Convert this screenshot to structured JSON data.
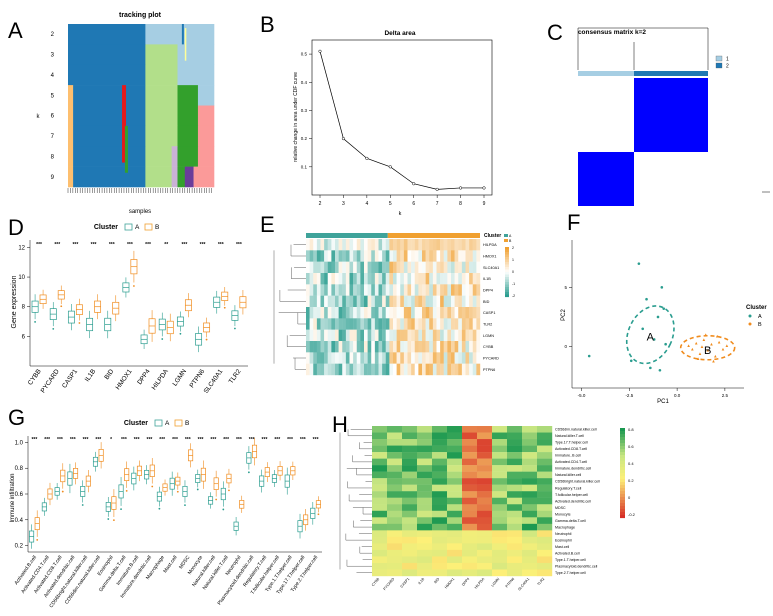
{
  "letters": {
    "a": "A",
    "b": "B",
    "c": "C",
    "d": "D",
    "e": "E",
    "f": "F",
    "g": "G",
    "h": "H"
  },
  "tracking": {
    "title": "tracking plot",
    "ylabel": "k",
    "xlabel": "samples",
    "k_labels": [
      "2",
      "3",
      "4",
      "5",
      "6",
      "7",
      "8",
      "9"
    ]
  },
  "delta": {
    "title": "Delta area",
    "ylabel": "relative change in area under CDF curve",
    "xlabel": "k",
    "x": [
      2,
      3,
      4,
      5,
      6,
      7,
      8,
      9
    ],
    "y": [
      0.51,
      0.2,
      0.13,
      0.1,
      0.04,
      0.02,
      0.025,
      0.025
    ],
    "xticks": [
      "2",
      "3",
      "4",
      "5",
      "6",
      "7",
      "8",
      "9"
    ],
    "yticks": [
      "0.1",
      "0.2",
      "0.3",
      "0.4",
      "0.5"
    ]
  },
  "consensus": {
    "title": "consensus matrix k=2",
    "legend": [
      "1",
      "2"
    ],
    "colors": {
      "c1": "#a6cee3",
      "c2": "#1f78b4",
      "fill": "#0000ff"
    }
  },
  "chart_data": [
    {
      "type": "box",
      "panel": "D",
      "legend_title": "Cluster",
      "legend": [
        "A",
        "B"
      ],
      "ylabel": "Gene expression",
      "categories": [
        "CYBB",
        "PYCARD",
        "CASP1",
        "IL1B",
        "BID",
        "HMOX1",
        "DPP4",
        "HILPDA",
        "LGMN",
        "PTPN6",
        "SLC40A1",
        "TLR2"
      ],
      "signif": [
        "***",
        "***",
        "***",
        "***",
        "***",
        "***",
        "***",
        "**",
        "***",
        "***",
        "***",
        "***"
      ],
      "yticks": [
        "6",
        "8",
        "10",
        "12"
      ],
      "ylim": [
        4,
        12.5
      ],
      "series": [
        {
          "name": "A",
          "median": [
            8.0,
            7.5,
            7.3,
            6.8,
            6.8,
            9.3,
            5.8,
            6.8,
            7.0,
            5.8,
            8.3,
            7.4
          ]
        },
        {
          "name": "B",
          "median": [
            8.5,
            8.8,
            7.8,
            8.0,
            7.9,
            10.7,
            6.7,
            6.6,
            8.1,
            6.6,
            8.7,
            8.3
          ]
        }
      ]
    },
    {
      "type": "heatmap",
      "panel": "E",
      "legend_title": "Cluster",
      "legend": [
        "A",
        "B"
      ],
      "scale_ticks": [
        "2",
        "1",
        "0",
        "-1",
        "-2"
      ],
      "rows": [
        "HILPDA",
        "HMOX1",
        "SLC40A1",
        "IL1B",
        "DPP4",
        "BID",
        "CASP1",
        "TLR2",
        "LGMN",
        "CYBB",
        "PYCARD",
        "PTPN6"
      ]
    },
    {
      "type": "scatter",
      "panel": "F",
      "xlabel": "PC1",
      "ylabel": "PC2",
      "legend_title": "Cluster",
      "legend": [
        "A",
        "B"
      ],
      "xticks": [
        "-5.0",
        "-2.5",
        "0.0",
        "2.5"
      ],
      "yticks": [
        "0",
        "5"
      ],
      "group_labels": [
        "A",
        "B"
      ],
      "clusterA": [
        [
          -2.0,
          7
        ],
        [
          -1.6,
          4
        ],
        [
          -0.8,
          5
        ],
        [
          -1.8,
          1.5
        ],
        [
          -1.2,
          0.6
        ],
        [
          -0.6,
          0.2
        ],
        [
          -2.4,
          -1.2
        ],
        [
          -1.4,
          -1.8
        ],
        [
          -0.9,
          -2.0
        ],
        [
          -4.6,
          -0.8
        ],
        [
          -1.0,
          2.5
        ],
        [
          -0.7,
          3.2
        ]
      ],
      "clusterB": [
        [
          0.8,
          -0.2
        ],
        [
          1.0,
          0.3
        ],
        [
          1.2,
          -0.6
        ],
        [
          1.4,
          0.6
        ],
        [
          1.6,
          -0.3
        ],
        [
          1.8,
          0.2
        ],
        [
          2.0,
          -0.8
        ],
        [
          2.2,
          0.4
        ],
        [
          2.4,
          -0.2
        ],
        [
          1.1,
          -1.0
        ],
        [
          1.5,
          1.0
        ],
        [
          1.9,
          -1.2
        ],
        [
          2.1,
          0.9
        ],
        [
          0.6,
          0.1
        ],
        [
          2.6,
          0.1
        ],
        [
          1.3,
          0.0
        ]
      ]
    },
    {
      "type": "box",
      "panel": "G",
      "legend_title": "Cluster",
      "legend": [
        "A",
        "B"
      ],
      "ylabel": "Immune infiltration",
      "yticks": [
        "0.2",
        "0.4",
        "0.6",
        "0.8",
        "1.0"
      ],
      "ylim": [
        0.15,
        1.05
      ],
      "categories": [
        "Activated.B.cell",
        "Activated.CD4.T.cell",
        "Activated.CD8.T.cell",
        "Activated.dendritic.cell",
        "CD56bright.natural.killer.cell",
        "CD56dim.natural.killer.cell",
        "Eosinophil",
        "Gamma.delta.T.cell",
        "Immature.B.cell",
        "Immature.dendritic.cell",
        "Macrophage",
        "Mast.cell",
        "MDSC",
        "Monocyte",
        "Natural.killer.cell",
        "Natural.killer.T.cell",
        "Neutrophil",
        "Plasmacytoid.dendritic.cell",
        "Regulatory.T.cell",
        "T.follicular.helper.cell",
        "Type.1.T.helper.cell",
        "Type.17.T.helper.cell",
        "Type.2.T.helper.cell"
      ],
      "signif": [
        "***",
        "***",
        "***",
        "***",
        "***",
        "***",
        "*",
        "***",
        "***",
        "***",
        "***",
        "***",
        "***",
        "***",
        "***",
        "***",
        "***",
        "***",
        "***",
        "***",
        "***",
        "***",
        "***"
      ],
      "series": [
        {
          "name": "A",
          "median": [
            0.27,
            0.5,
            0.62,
            0.72,
            0.62,
            0.85,
            0.5,
            0.62,
            0.72,
            0.75,
            0.58,
            0.68,
            0.62,
            0.72,
            0.55,
            0.6,
            0.35,
            0.88,
            0.7,
            0.72,
            0.7,
            0.35,
            0.45
          ]
        },
        {
          "name": "B",
          "median": [
            0.37,
            0.6,
            0.74,
            0.76,
            0.7,
            0.9,
            0.53,
            0.75,
            0.78,
            0.78,
            0.65,
            0.7,
            0.9,
            0.75,
            0.68,
            0.72,
            0.52,
            0.93,
            0.77,
            0.78,
            0.78,
            0.4,
            0.52
          ]
        }
      ]
    },
    {
      "type": "heatmap",
      "panel": "H",
      "scale_ticks": [
        "0.8",
        "0.6",
        "0.4",
        "0.2",
        "0",
        "-0.2"
      ],
      "rows": [
        "CD56dim.natural.killer.cell",
        "Natural.killer.T.cell",
        "Type.17.T.helper.cell",
        "Activated.CD8.T.cell",
        "Immature..B.cell",
        "Activated.CD4.T.cell",
        "Immature.dendritic.cell",
        "Natural.killer.cell",
        "CD56bright.natural.killer.cell",
        "Regulatory.T.cell",
        "T.follicular.helper.cell",
        "Activated.dendritic.cell",
        "MDSC",
        "Monocyte",
        "Gamma.delta.T.cell",
        "Macrophage",
        "Neutrophil",
        "Eosinophil",
        "Mast.cell",
        "Activated.B.cell",
        "Type.1.T.helper.cell",
        "Plasmacytoid.dendritic.cell",
        "Type.2.T.helper.cell"
      ],
      "cols": [
        "CYBB",
        "PYCARD",
        "CASP1",
        "IL1B",
        "BID",
        "HMOX1",
        "DPP4",
        "HILPDA",
        "LGMN",
        "PTPN6",
        "SLC40A1",
        "TLR2"
      ]
    }
  ]
}
